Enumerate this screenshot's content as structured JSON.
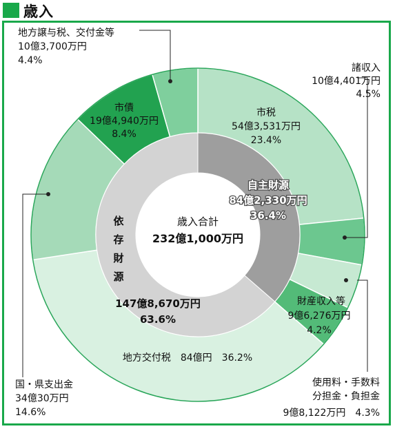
{
  "section_title": "歳入",
  "chart_data": {
    "type": "pie",
    "title": "歳入合計",
    "total": "232億1,000万円",
    "inner_ring": [
      {
        "label": "自主財源",
        "amount": "84億2,330万円",
        "percent": 36.4,
        "pct_label": "36.4%"
      },
      {
        "label": "依存財源",
        "amount": "147億8,670万円",
        "percent": 63.6,
        "pct_label": "63.6%"
      }
    ],
    "outer_ring": [
      {
        "label": "市税",
        "amount": "54億3,531万円",
        "percent": 23.4,
        "pct_label": "23.4%",
        "color": "#b6e2c6"
      },
      {
        "label": "諸収入",
        "amount": "10億4,401万円",
        "percent": 4.5,
        "pct_label": "4.5%",
        "color": "#6cc78f"
      },
      {
        "label": "使用料・手数料 分担金・負担金",
        "amount": "9億8,122万円",
        "percent": 4.3,
        "pct_label": "4.3%",
        "color": "#c6e9d2"
      },
      {
        "label": "財産収入等",
        "amount": "9億6,276万円",
        "percent": 4.2,
        "pct_label": "4.2%",
        "color": "#53bb78"
      },
      {
        "label": "地方交付税",
        "amount": "84億円",
        "percent": 36.2,
        "pct_label": "36.2%",
        "color": "#d9f1e1"
      },
      {
        "label": "国・県支出金",
        "amount": "34億30万円",
        "percent": 14.6,
        "pct_label": "14.6%",
        "color": "#a5dab8"
      },
      {
        "label": "市債",
        "amount": "19億4,940万円",
        "percent": 8.4,
        "pct_label": "8.4%",
        "color": "#22a250"
      },
      {
        "label": "地方譲与税、交付金等",
        "amount": "10億3,700万円",
        "percent": 4.4,
        "pct_label": "4.4%",
        "color": "#7fcf9d"
      }
    ]
  },
  "labels": {
    "shizei": {
      "name": "市税",
      "amount": "54億3,531万円",
      "pct": "23.4%"
    },
    "shoshunyu": {
      "name": "諸収入",
      "amount": "10億4,401万円",
      "pct": "4.5%"
    },
    "shiyoryo": {
      "name1": "使用料・手数料",
      "name2": "分担金・負担金",
      "amount_pct": "9億8,122万円　4.3%"
    },
    "zaisan": {
      "name": "財産収入等",
      "amount": "9億6,276万円",
      "pct": "4.2%"
    },
    "kofuzei": {
      "text": "地方交付税　84億円　36.2%"
    },
    "kokken": {
      "name": "国・県支出金",
      "amount": "34億30万円",
      "pct": "14.6%"
    },
    "shisai": {
      "name": "市債",
      "amount": "19億4,940万円",
      "pct": "8.4%"
    },
    "joyozei": {
      "name": "地方譲与税、交付金等",
      "amount": "10億3,700万円",
      "pct": "4.4%"
    },
    "jishu": {
      "name": "自主財源",
      "amount": "84億2,330万円",
      "pct": "36.4%"
    },
    "izon": {
      "c1": "依",
      "c2": "存",
      "c3": "財",
      "c4": "源",
      "amount": "147億8,670万円",
      "pct": "63.6%"
    },
    "center": {
      "title": "歳入合計",
      "total": "232億1,000万円"
    }
  }
}
